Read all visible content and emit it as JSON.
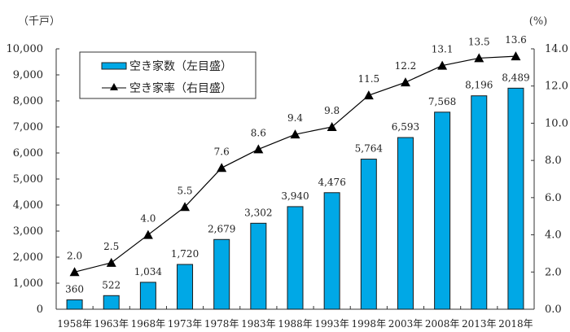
{
  "chart_data": {
    "type": "bar+line",
    "categories": [
      "1958年",
      "1963年",
      "1968年",
      "1973年",
      "1978年",
      "1983年",
      "1988年",
      "1993年",
      "1998年",
      "2003年",
      "2008年",
      "2013年",
      "2018年"
    ],
    "series": [
      {
        "name": "空き家数（左目盛）",
        "type": "bar",
        "axis": "left",
        "values": [
          360,
          522,
          1034,
          1720,
          2679,
          3302,
          3940,
          4476,
          5764,
          6593,
          7568,
          8196,
          8489
        ],
        "labels": [
          "360",
          "522",
          "1,034",
          "1,720",
          "2,679",
          "3,302",
          "3,940",
          "4,476",
          "5,764",
          "6,593",
          "7,568",
          "8,196",
          "8,489"
        ],
        "color": "#00a8e6"
      },
      {
        "name": "空き家率（右目盛）",
        "type": "line",
        "axis": "right",
        "values": [
          2.0,
          2.5,
          4.0,
          5.5,
          7.6,
          8.6,
          9.4,
          9.8,
          11.5,
          12.2,
          13.1,
          13.5,
          13.6
        ],
        "labels": [
          "2.0",
          "2.5",
          "4.0",
          "5.5",
          "7.6",
          "8.6",
          "9.4",
          "9.8",
          "11.5",
          "12.2",
          "13.1",
          "13.5",
          "13.6"
        ],
        "color": "#000000",
        "marker": "triangle"
      }
    ],
    "y_left": {
      "unit": "（千戸）",
      "range": [
        0,
        10000
      ],
      "ticks": [
        0,
        1000,
        2000,
        3000,
        4000,
        5000,
        6000,
        7000,
        8000,
        9000,
        10000
      ],
      "tick_labels": [
        "0",
        "1,000",
        "2,000",
        "3,000",
        "4,000",
        "5,000",
        "6,000",
        "7,000",
        "8,000",
        "9,000",
        "10,000"
      ]
    },
    "y_right": {
      "unit": "(%)",
      "range": [
        0,
        14
      ],
      "ticks": [
        0,
        2,
        4,
        6,
        8,
        10,
        12,
        14
      ],
      "tick_labels": [
        "0.0",
        "2.0",
        "4.0",
        "6.0",
        "8.0",
        "10.0",
        "12.0",
        "14.0"
      ]
    },
    "grid": false,
    "legend": {
      "position": "top-left",
      "entries": [
        "空き家数（左目盛）",
        "空き家率（右目盛）"
      ]
    }
  }
}
